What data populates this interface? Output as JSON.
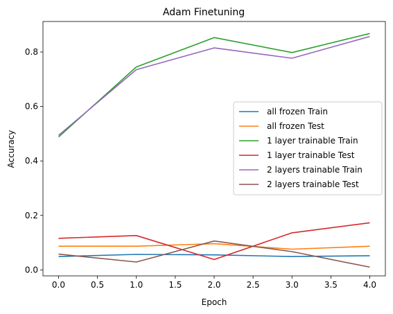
{
  "chart_data": {
    "type": "line",
    "title": "Adam Finetuning",
    "xlabel": "Epoch",
    "ylabel": "Accuracy",
    "x": [
      0,
      1,
      2,
      3,
      4
    ],
    "xlim": [
      -0.2,
      4.2
    ],
    "ylim": [
      -0.022,
      0.912
    ],
    "xticks": [
      "0.0",
      "0.5",
      "1.0",
      "1.5",
      "2.0",
      "2.5",
      "3.0",
      "3.5",
      "4.0"
    ],
    "xtick_values": [
      0,
      0.5,
      1,
      1.5,
      2,
      2.5,
      3,
      3.5,
      4
    ],
    "yticks": [
      "0.0",
      "0.2",
      "0.4",
      "0.6",
      "0.8"
    ],
    "ytick_values": [
      0,
      0.2,
      0.4,
      0.6,
      0.8
    ],
    "grid": false,
    "legend_position": "center-right",
    "series": [
      {
        "name": "all frozen Train",
        "color": "#1f77b4",
        "values": [
          0.049,
          0.057,
          0.055,
          0.049,
          0.052
        ]
      },
      {
        "name": "all frozen Test",
        "color": "#ff7f0e",
        "values": [
          0.087,
          0.087,
          0.096,
          0.076,
          0.087
        ]
      },
      {
        "name": "1 layer trainable Train",
        "color": "#2ca02c",
        "values": [
          0.488,
          0.745,
          0.853,
          0.798,
          0.868
        ]
      },
      {
        "name": "1 layer trainable Test",
        "color": "#d62728",
        "values": [
          0.116,
          0.126,
          0.038,
          0.136,
          0.173
        ]
      },
      {
        "name": "2 layers trainable Train",
        "color": "#9467bd",
        "values": [
          0.494,
          0.735,
          0.815,
          0.777,
          0.857
        ]
      },
      {
        "name": "2 layers trainable Test",
        "color": "#8c564b",
        "values": [
          0.058,
          0.029,
          0.106,
          0.067,
          0.01
        ]
      }
    ]
  }
}
